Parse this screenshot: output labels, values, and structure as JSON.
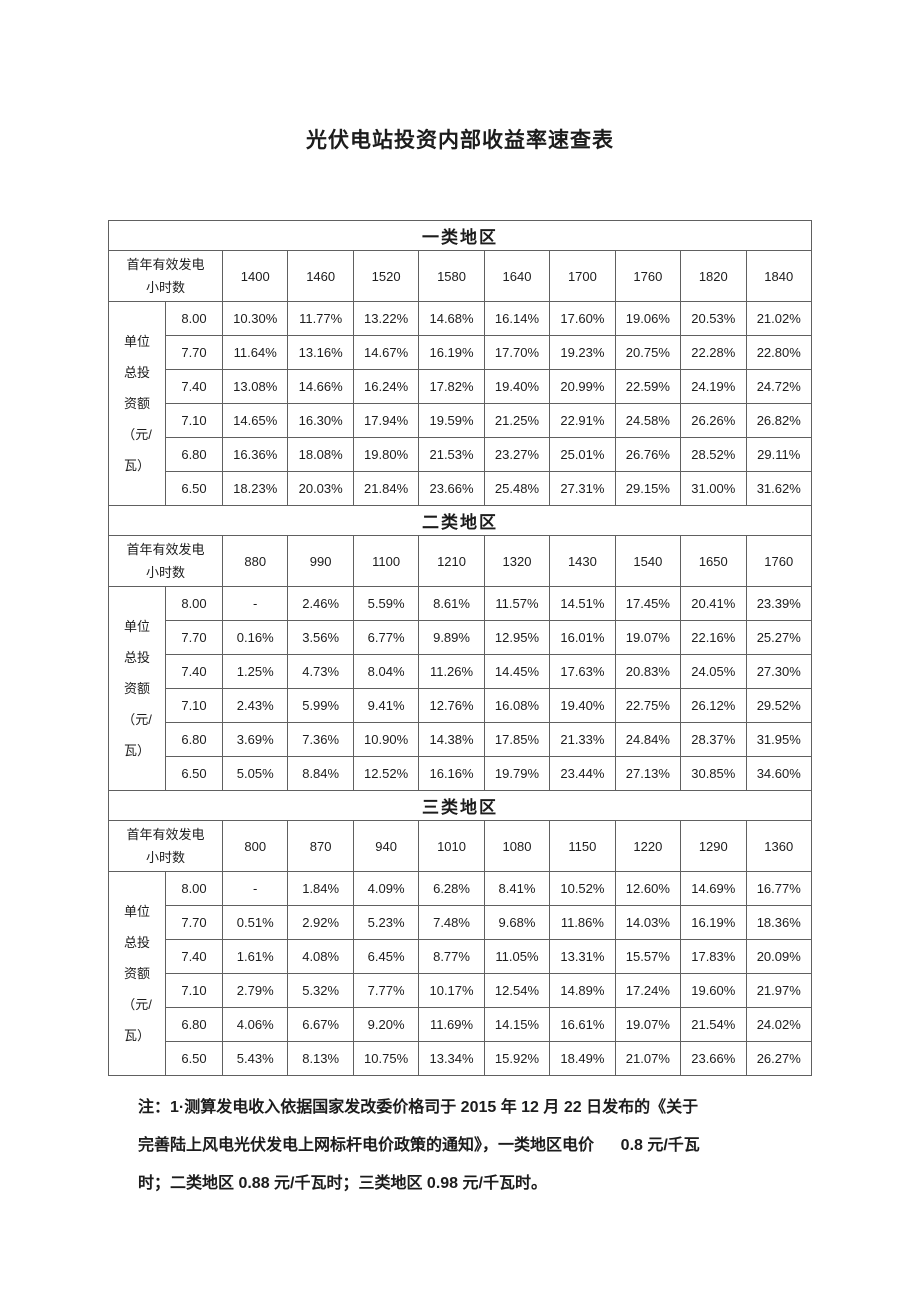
{
  "page": {
    "title": "光伏电站投资内部收益率速查表"
  },
  "colors": {
    "background": "#ffffff",
    "text": "#1c1c1c",
    "table_border": "#606060"
  },
  "table": {
    "col_header_label_lines": [
      "首年有效发电",
      "小时数"
    ],
    "row_header_label_lines": [
      "单位",
      "总投",
      "资额",
      "（元/",
      "瓦）"
    ],
    "sections": [
      {
        "region": "一类地区",
        "hours": [
          "1400",
          "1460",
          "1520",
          "1580",
          "1640",
          "1700",
          "1760",
          "1820",
          "1840"
        ],
        "rows": [
          {
            "investment": "8.00",
            "values": [
              "10.30%",
              "11.77%",
              "13.22%",
              "14.68%",
              "16.14%",
              "17.60%",
              "19.06%",
              "20.53%",
              "21.02%"
            ]
          },
          {
            "investment": "7.70",
            "values": [
              "11.64%",
              "13.16%",
              "14.67%",
              "16.19%",
              "17.70%",
              "19.23%",
              "20.75%",
              "22.28%",
              "22.80%"
            ]
          },
          {
            "investment": "7.40",
            "values": [
              "13.08%",
              "14.66%",
              "16.24%",
              "17.82%",
              "19.40%",
              "20.99%",
              "22.59%",
              "24.19%",
              "24.72%"
            ]
          },
          {
            "investment": "7.10",
            "values": [
              "14.65%",
              "16.30%",
              "17.94%",
              "19.59%",
              "21.25%",
              "22.91%",
              "24.58%",
              "26.26%",
              "26.82%"
            ]
          },
          {
            "investment": "6.80",
            "values": [
              "16.36%",
              "18.08%",
              "19.80%",
              "21.53%",
              "23.27%",
              "25.01%",
              "26.76%",
              "28.52%",
              "29.11%"
            ]
          },
          {
            "investment": "6.50",
            "values": [
              "18.23%",
              "20.03%",
              "21.84%",
              "23.66%",
              "25.48%",
              "27.31%",
              "29.15%",
              "31.00%",
              "31.62%"
            ]
          }
        ]
      },
      {
        "region": "二类地区",
        "hours": [
          "880",
          "990",
          "1100",
          "1210",
          "1320",
          "1430",
          "1540",
          "1650",
          "1760"
        ],
        "rows": [
          {
            "investment": "8.00",
            "values": [
              "-",
              "2.46%",
              "5.59%",
              "8.61%",
              "11.57%",
              "14.51%",
              "17.45%",
              "20.41%",
              "23.39%"
            ]
          },
          {
            "investment": "7.70",
            "values": [
              "0.16%",
              "3.56%",
              "6.77%",
              "9.89%",
              "12.95%",
              "16.01%",
              "19.07%",
              "22.16%",
              "25.27%"
            ]
          },
          {
            "investment": "7.40",
            "values": [
              "1.25%",
              "4.73%",
              "8.04%",
              "11.26%",
              "14.45%",
              "17.63%",
              "20.83%",
              "24.05%",
              "27.30%"
            ]
          },
          {
            "investment": "7.10",
            "values": [
              "2.43%",
              "5.99%",
              "9.41%",
              "12.76%",
              "16.08%",
              "19.40%",
              "22.75%",
              "26.12%",
              "29.52%"
            ]
          },
          {
            "investment": "6.80",
            "values": [
              "3.69%",
              "7.36%",
              "10.90%",
              "14.38%",
              "17.85%",
              "21.33%",
              "24.84%",
              "28.37%",
              "31.95%"
            ]
          },
          {
            "investment": "6.50",
            "values": [
              "5.05%",
              "8.84%",
              "12.52%",
              "16.16%",
              "19.79%",
              "23.44%",
              "27.13%",
              "30.85%",
              "34.60%"
            ]
          }
        ]
      },
      {
        "region": "三类地区",
        "hours": [
          "800",
          "870",
          "940",
          "1010",
          "1080",
          "1150",
          "1220",
          "1290",
          "1360"
        ],
        "rows": [
          {
            "investment": "8.00",
            "values": [
              "-",
              "1.84%",
              "4.09%",
              "6.28%",
              "8.41%",
              "10.52%",
              "12.60%",
              "14.69%",
              "16.77%"
            ]
          },
          {
            "investment": "7.70",
            "values": [
              "0.51%",
              "2.92%",
              "5.23%",
              "7.48%",
              "9.68%",
              "11.86%",
              "14.03%",
              "16.19%",
              "18.36%"
            ]
          },
          {
            "investment": "7.40",
            "values": [
              "1.61%",
              "4.08%",
              "6.45%",
              "8.77%",
              "11.05%",
              "13.31%",
              "15.57%",
              "17.83%",
              "20.09%"
            ]
          },
          {
            "investment": "7.10",
            "values": [
              "2.79%",
              "5.32%",
              "7.77%",
              "10.17%",
              "12.54%",
              "14.89%",
              "17.24%",
              "19.60%",
              "21.97%"
            ]
          },
          {
            "investment": "6.80",
            "values": [
              "4.06%",
              "6.67%",
              "9.20%",
              "11.69%",
              "14.15%",
              "16.61%",
              "19.07%",
              "21.54%",
              "24.02%"
            ]
          },
          {
            "investment": "6.50",
            "values": [
              "5.43%",
              "8.13%",
              "10.75%",
              "13.34%",
              "15.92%",
              "18.49%",
              "21.07%",
              "23.66%",
              "26.27%"
            ]
          }
        ]
      }
    ]
  },
  "note": {
    "lines": [
      "注：1·测算发电收入依据国家发改委价格司于 2015 年 12 月 22 日发布的《关于",
      "完善陆上风电光伏发电上网标杆电价政策的通知》，一类地区电价      0.8 元/千瓦",
      "时；二类地区 0.88 元/千瓦时；三类地区 0.98 元/千瓦时。"
    ]
  }
}
